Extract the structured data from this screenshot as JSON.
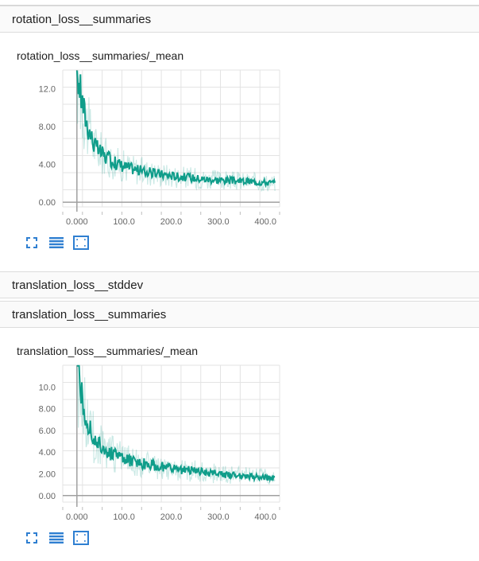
{
  "sections": [
    {
      "label": "rotation_loss__summaries"
    },
    {
      "label": "translation_loss__stddev"
    },
    {
      "label": "translation_loss__summaries"
    }
  ],
  "accent_color": "#0f9d8a",
  "icons": [
    "expand-icon",
    "list-icon",
    "fit-domain-icon"
  ],
  "chart_data": [
    {
      "type": "line",
      "title": "rotation_loss__summaries/_mean",
      "xlim": [
        -30,
        430
      ],
      "ylim": [
        -0.5,
        14
      ],
      "xticks": [
        0,
        100,
        200,
        300,
        400
      ],
      "xtick_labels": [
        "0.000",
        "100.0",
        "200.0",
        "300.0",
        "400.0"
      ],
      "yticks": [
        0,
        4,
        8,
        12
      ],
      "ytick_labels": [
        "0.00",
        "4.00",
        "8.00",
        "12.0"
      ],
      "grid": true,
      "series": [
        {
          "x": [
            0,
            10,
            20,
            30,
            40,
            60,
            80,
            100,
            130,
            160,
            200,
            240,
            280,
            320,
            360,
            400,
            420
          ],
          "y": [
            14,
            11,
            8.5,
            7.0,
            5.8,
            4.8,
            4.2,
            3.8,
            3.4,
            3.1,
            2.8,
            2.6,
            2.4,
            2.3,
            2.2,
            2.1,
            2.0
          ]
        }
      ]
    },
    {
      "type": "line",
      "title": "translation_loss__summaries/_mean",
      "xlim": [
        -30,
        430
      ],
      "ylim": [
        -0.6,
        12
      ],
      "xticks": [
        0,
        100,
        200,
        300,
        400
      ],
      "xtick_labels": [
        "0.000",
        "100.0",
        "200.0",
        "300.0",
        "400.0"
      ],
      "yticks": [
        0,
        2,
        4,
        6,
        8,
        10
      ],
      "ytick_labels": [
        "0.00",
        "2.00",
        "4.00",
        "6.00",
        "8.00",
        "10.0"
      ],
      "grid": true,
      "series": [
        {
          "x": [
            0,
            10,
            20,
            30,
            40,
            60,
            80,
            100,
            130,
            160,
            200,
            240,
            280,
            320,
            360,
            400,
            420
          ],
          "y": [
            12,
            9.0,
            7.0,
            5.8,
            5.0,
            4.2,
            3.7,
            3.3,
            3.0,
            2.8,
            2.5,
            2.3,
            2.1,
            1.9,
            1.8,
            1.7,
            1.6
          ]
        }
      ]
    }
  ]
}
